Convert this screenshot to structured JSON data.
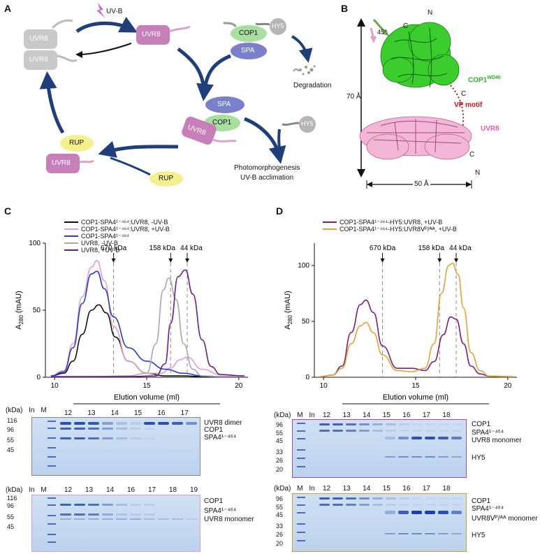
{
  "panels": {
    "A": "A",
    "B": "B",
    "C": "C",
    "D": "D"
  },
  "panelA": {
    "uvb": "UV-B",
    "uvr8": "UVR8",
    "cop1": "COP1",
    "spa": "SPA",
    "hy5": "HY5",
    "rup": "RUP",
    "degradation": "Degradation",
    "photomorph_1": "Photomorphogenesis",
    "photomorph_2": "UV-B acclimation"
  },
  "panelB": {
    "n": "N",
    "c": "C",
    "angle": "45°",
    "cop1": "COP1",
    "cop1_sup": "WD40",
    "vp": "VP motif",
    "uvr8": "UVR8",
    "dim_vertical": "70 Å",
    "dim_horizontal": "50 Å"
  },
  "panelC": {
    "legend": [
      {
        "name": "COP1-SPA4¹⁻⁴⁶⁴:UVR8, -UV-B",
        "color": "#111111"
      },
      {
        "name": "COP1-SPA4¹⁻⁴⁶⁴:UVR8, +UV-B",
        "color": "#e79fc4"
      },
      {
        "name": "COP1-SPA4¹⁻⁴⁶⁴",
        "color": "#2a3bd0"
      },
      {
        "name": "UVR8, -UV-B",
        "color": "#a8a8a8"
      },
      {
        "name": "UVR8, +UV-B",
        "color": "#6a1f8a"
      }
    ],
    "ylabel": "A",
    "ylabel_sub": "280",
    "ylabel_unit": " (mAU)",
    "xlabel": "Elution volume (ml)",
    "markers": [
      "670 kDa",
      "158 kDa",
      "44 kDa"
    ],
    "gel1": {
      "kda": "(kDa)",
      "in": "In",
      "m": "M",
      "fractions": [
        "12",
        "13",
        "14",
        "15",
        "16",
        "17"
      ],
      "mw": [
        "116",
        "96",
        "55",
        "45"
      ],
      "bands": [
        "UVR8 dimer",
        "COP1",
        "SPA4¹⁻⁴⁶⁴"
      ]
    },
    "gel2": {
      "kda": "(kDa)",
      "in": "In",
      "m": "M",
      "fractions": [
        "12",
        "13",
        "14",
        "16",
        "17",
        "18",
        "19"
      ],
      "mw": [
        "116",
        "96",
        "55",
        "45"
      ],
      "bands": [
        "COP1",
        "SPA4¹⁻⁴⁶⁴",
        "UVR8 monomer"
      ]
    }
  },
  "panelD": {
    "legend": [
      {
        "name": "COP1-SPA4¹⁻⁴⁶⁴-HY5:UVR8, +UV-B",
        "color": "#7a1f7e"
      },
      {
        "name": "COP1-SPA4¹⁻⁴⁶⁴-HY5:UVR8ᐯᴾ/ᴬᴬ, +UV-B",
        "color": "#e0a434"
      }
    ],
    "ylabel": "A",
    "ylabel_sub": "280",
    "ylabel_unit": " (mAU)",
    "xlabel": "Elution volume (ml)",
    "markers": [
      "670 kDa",
      "158 kDa",
      "44 kDa"
    ],
    "gel1": {
      "kda": "(kDa)",
      "in": "In",
      "m": "M",
      "fractions": [
        "12",
        "13",
        "14",
        "15",
        "16",
        "17",
        "18"
      ],
      "mw": [
        "96",
        "55",
        "45",
        "33",
        "26",
        "20"
      ],
      "bands": [
        "COP1",
        "SPA4¹⁻⁴⁶⁴",
        "UVR8 monomer",
        "HY5"
      ]
    },
    "gel2": {
      "kda": "(kDa)",
      "in": "In",
      "m": "M",
      "fractions": [
        "12",
        "13",
        "14",
        "15",
        "16",
        "17",
        "18"
      ],
      "mw": [
        "96",
        "55",
        "45",
        "33",
        "26",
        "20"
      ],
      "bands": [
        "COP1",
        "SPA4¹⁻⁴⁶⁴",
        "UVR8ᐯᴾ/ᴬᴬ monomer",
        "HY5"
      ]
    }
  },
  "chart_data": [
    {
      "type": "line",
      "panel": "C",
      "ylabel": "A280 (mAU)",
      "xlabel": "Elution volume (ml)",
      "xlim": [
        9.5,
        20.5
      ],
      "ylim": [
        0,
        100
      ],
      "xticks": [
        10,
        15,
        20
      ],
      "yticks": [
        0,
        50,
        100
      ],
      "markers": [
        {
          "label": "670 kDa",
          "x": 13.2
        },
        {
          "label": "158 kDa",
          "x": 16.3
        },
        {
          "label": "44 kDa",
          "x": 17.2
        }
      ],
      "series": [
        {
          "name": "COP1-SPA4¹⁻⁴⁶⁴:UVR8, -UV-B",
          "color": "#111111",
          "x": [
            9.8,
            10.5,
            11,
            11.5,
            12,
            12.4,
            12.8,
            13.3,
            14,
            15,
            16,
            16.5,
            17,
            18,
            19,
            20.3
          ],
          "y": [
            1,
            3,
            12,
            32,
            50,
            54,
            48,
            30,
            12,
            3,
            1,
            1,
            1,
            0.5,
            0.5,
            0.5
          ]
        },
        {
          "name": "COP1-SPA4¹⁻⁴⁶⁴:UVR8, +UV-B",
          "color": "#e79fc4",
          "x": [
            9.8,
            10.5,
            11,
            11.5,
            12,
            12.3,
            12.7,
            13.2,
            14,
            15,
            15.8,
            16.3,
            16.8,
            17.2,
            18,
            19,
            20.3
          ],
          "y": [
            1,
            5,
            25,
            60,
            82,
            87,
            72,
            38,
            12,
            3,
            3,
            7,
            13,
            15,
            6,
            2,
            1
          ]
        },
        {
          "name": "COP1-SPA4¹⁻⁴⁶⁴",
          "color": "#2a3bd0",
          "x": [
            9.8,
            10.5,
            11,
            11.5,
            12,
            12.3,
            12.7,
            13.2,
            14,
            15,
            16,
            17,
            18,
            19,
            20.3
          ],
          "y": [
            1,
            4,
            22,
            55,
            77,
            79,
            66,
            45,
            22,
            12,
            6,
            3,
            1,
            0.5,
            0.5
          ]
        },
        {
          "name": "UVR8, -UV-B",
          "color": "#a8a8a8",
          "x": [
            9.8,
            12,
            14,
            15,
            15.5,
            15.9,
            16.2,
            16.6,
            17,
            17.5,
            18,
            19,
            20.3
          ],
          "y": [
            0.5,
            0.5,
            1,
            3,
            25,
            65,
            74,
            58,
            25,
            6,
            1,
            0.5,
            0.5
          ]
        },
        {
          "name": "UVR8, +UV-B",
          "color": "#6a1f8a",
          "x": [
            9.8,
            12,
            14,
            15.5,
            16,
            16.3,
            16.7,
            17.1,
            17.5,
            18,
            18.5,
            19,
            20.3
          ],
          "y": [
            0.5,
            0.5,
            0.5,
            1,
            10,
            40,
            75,
            80,
            62,
            28,
            8,
            2,
            1
          ]
        }
      ]
    },
    {
      "type": "line",
      "panel": "D",
      "ylabel": "A280 (mAU)",
      "xlabel": "Elution volume (ml)",
      "xlim": [
        9.5,
        20.5
      ],
      "ylim": [
        0,
        120
      ],
      "xticks": [
        10,
        15,
        20
      ],
      "yticks": [
        0,
        50,
        100
      ],
      "markers": [
        {
          "label": "670 kDa",
          "x": 13.2
        },
        {
          "label": "158 kDa",
          "x": 16.3
        },
        {
          "label": "44 kDa",
          "x": 17.2
        }
      ],
      "series": [
        {
          "name": "COP1-SPA4¹⁻⁴⁶⁴-HY5:UVR8, +UV-B",
          "color": "#7a1f7e",
          "x": [
            9.8,
            10.5,
            11,
            11.5,
            12,
            12.3,
            12.7,
            13.2,
            14,
            14.8,
            15.5,
            16,
            16.5,
            16.9,
            17.2,
            17.6,
            18,
            18.5,
            19,
            20.3
          ],
          "y": [
            0.5,
            2,
            10,
            40,
            65,
            69,
            58,
            28,
            8,
            8,
            6,
            14,
            38,
            54,
            52,
            30,
            10,
            3,
            1,
            0.5
          ]
        },
        {
          "name": "COP1-SPA4¹⁻⁴⁶⁴-HY5:UVR8ᐯᴾ/ᴬᴬ, +UV-B",
          "color": "#e0a434",
          "x": [
            9.8,
            10.5,
            11,
            11.5,
            12,
            12.3,
            12.7,
            13.2,
            14,
            14.8,
            15.5,
            16,
            16.4,
            16.8,
            17,
            17.3,
            17.6,
            18,
            18.5,
            19,
            20.3
          ],
          "y": [
            0.5,
            2,
            8,
            30,
            46,
            49,
            40,
            20,
            6,
            5,
            8,
            30,
            75,
            100,
            102,
            92,
            62,
            22,
            6,
            1,
            0.5
          ]
        }
      ]
    }
  ]
}
